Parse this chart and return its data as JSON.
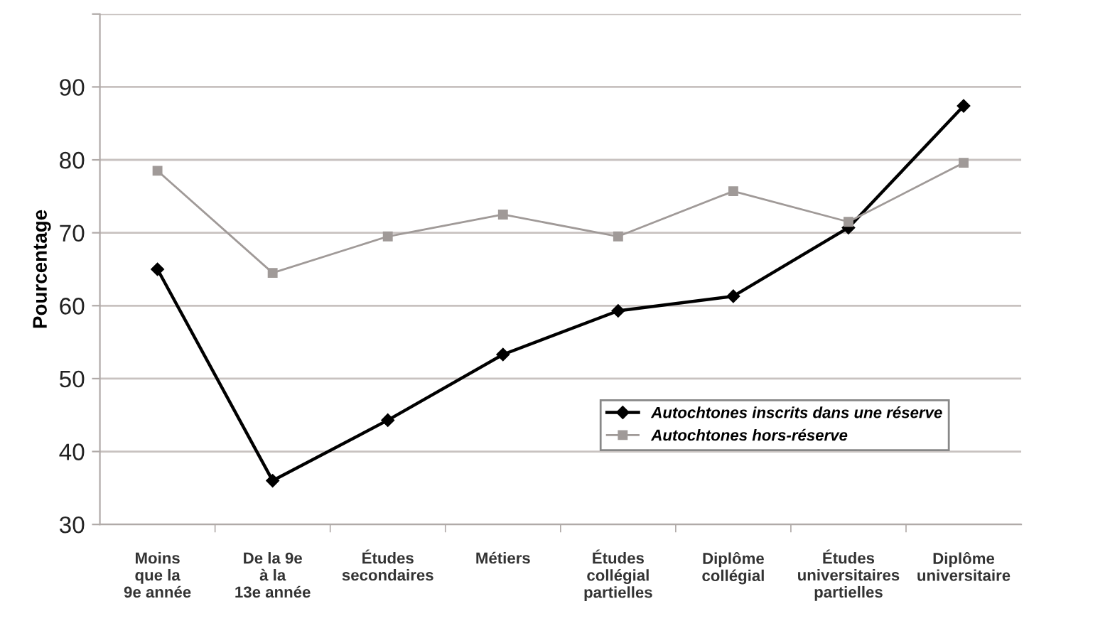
{
  "chart_data": {
    "type": "line",
    "ylabel": "Pourcentage",
    "categories": [
      "Moins\nque la\n9e année",
      "De la 9e\nà la\n13e année",
      "Études\nsecondaires",
      "Métiers",
      "Études\ncollégial\npartielles",
      "Diplôme\ncollégial",
      "Études\nuniversitaires\npartielles",
      "Diplôme\nuniversitaire"
    ],
    "series": [
      {
        "name": "Autochtones inscrits dans une réserve",
        "color": "#000000",
        "marker": "diamond",
        "values": [
          65,
          36,
          44.3,
          53.3,
          59.3,
          61.3,
          70.7,
          87.4
        ]
      },
      {
        "name": "Autochtones hors-réserve",
        "color": "#a09a98",
        "marker": "square",
        "values": [
          78.5,
          64.5,
          69.5,
          72.5,
          69.5,
          75.7,
          71.5,
          79.6
        ]
      }
    ],
    "ylim": [
      30,
      100
    ],
    "yticks": [
      30,
      40,
      50,
      60,
      70,
      80,
      90,
      {
        "value": 100,
        "label": null
      }
    ],
    "grid": "y",
    "legend": "lower right"
  }
}
